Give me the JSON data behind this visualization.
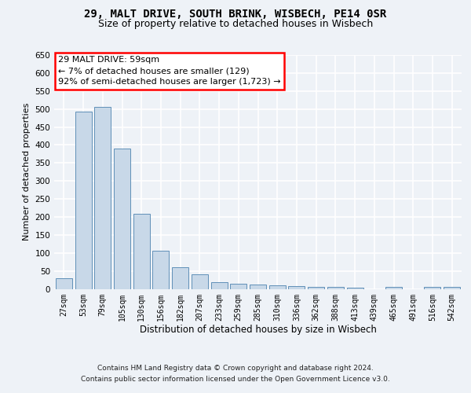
{
  "title_line1": "29, MALT DRIVE, SOUTH BRINK, WISBECH, PE14 0SR",
  "title_line2": "Size of property relative to detached houses in Wisbech",
  "xlabel": "Distribution of detached houses by size in Wisbech",
  "ylabel": "Number of detached properties",
  "footer_line1": "Contains HM Land Registry data © Crown copyright and database right 2024.",
  "footer_line2": "Contains public sector information licensed under the Open Government Licence v3.0.",
  "annotation_line1": "29 MALT DRIVE: 59sqm",
  "annotation_line2": "← 7% of detached houses are smaller (129)",
  "annotation_line3": "92% of semi-detached houses are larger (1,723) →",
  "bar_labels": [
    "27sqm",
    "53sqm",
    "79sqm",
    "105sqm",
    "130sqm",
    "156sqm",
    "182sqm",
    "207sqm",
    "233sqm",
    "259sqm",
    "285sqm",
    "310sqm",
    "336sqm",
    "362sqm",
    "388sqm",
    "413sqm",
    "439sqm",
    "465sqm",
    "491sqm",
    "516sqm",
    "542sqm"
  ],
  "bar_values": [
    30,
    492,
    505,
    390,
    208,
    107,
    59,
    40,
    18,
    15,
    12,
    10,
    8,
    5,
    5,
    3,
    0,
    5,
    0,
    5,
    5
  ],
  "bar_color": "#c8d8e8",
  "bar_edge_color": "#6090b8",
  "bg_color": "#eef2f7",
  "grid_color": "#ffffff",
  "ylim_max": 650,
  "ytick_step": 50
}
